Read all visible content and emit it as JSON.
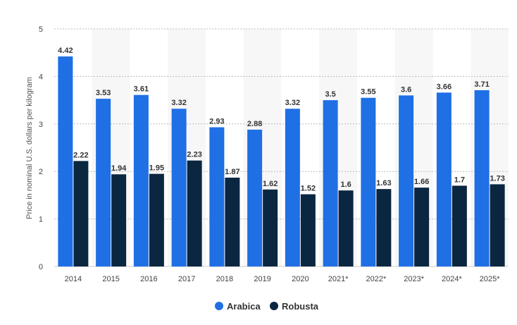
{
  "chart_data": {
    "type": "bar",
    "ylabel": "Price in nominal U.S. dollars per kilogram",
    "xlabel": "",
    "ylim": [
      0,
      5
    ],
    "yticks": [
      0,
      1,
      2,
      3,
      4,
      5
    ],
    "grid": true,
    "legend_position": "bottom-center",
    "categories": [
      "2014",
      "2015",
      "2016",
      "2017",
      "2018",
      "2019",
      "2020",
      "2021*",
      "2022*",
      "2023*",
      "2024*",
      "2025*"
    ],
    "series": [
      {
        "name": "Arabica",
        "color": "#1f6fe5",
        "values": [
          4.42,
          3.53,
          3.61,
          3.32,
          2.93,
          2.88,
          3.32,
          3.5,
          3.55,
          3.6,
          3.66,
          3.71
        ],
        "labels": [
          "4.42",
          "3.53",
          "3.61",
          "3.32",
          "2.93",
          "2.88",
          "3.32",
          "3.5",
          "3.55",
          "3.6",
          "3.66",
          "3.71"
        ]
      },
      {
        "name": "Robusta",
        "color": "#0b2640",
        "values": [
          2.22,
          1.94,
          1.95,
          2.23,
          1.87,
          1.62,
          1.52,
          1.6,
          1.63,
          1.66,
          1.7,
          1.73
        ],
        "labels": [
          "2.22",
          "1.94",
          "1.95",
          "2.23",
          "1.87",
          "1.62",
          "1.52",
          "1.6",
          "1.63",
          "1.66",
          "1.7",
          "1.73"
        ]
      }
    ]
  }
}
